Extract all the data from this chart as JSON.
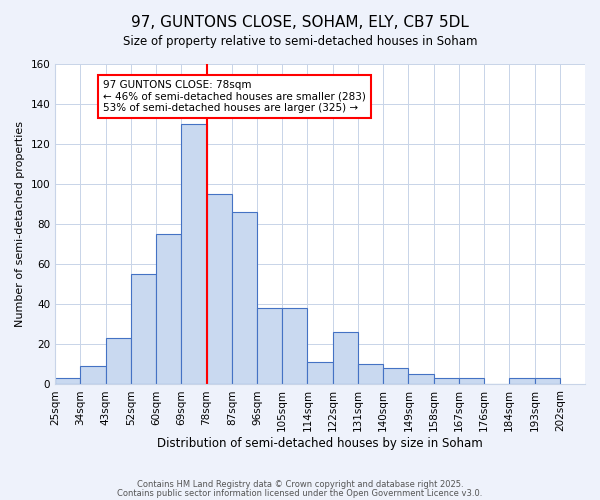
{
  "title_line1": "97, GUNTONS CLOSE, SOHAM, ELY, CB7 5DL",
  "title_line2": "Size of property relative to semi-detached houses in Soham",
  "xlabel": "Distribution of semi-detached houses by size in Soham",
  "ylabel": "Number of semi-detached properties",
  "bin_labels": [
    "25sqm",
    "34sqm",
    "43sqm",
    "52sqm",
    "60sqm",
    "69sqm",
    "78sqm",
    "87sqm",
    "96sqm",
    "105sqm",
    "114sqm",
    "122sqm",
    "131sqm",
    "140sqm",
    "149sqm",
    "158sqm",
    "167sqm",
    "176sqm",
    "184sqm",
    "193sqm",
    "202sqm"
  ],
  "bar_heights": [
    3,
    9,
    23,
    55,
    75,
    130,
    95,
    86,
    38,
    38,
    11,
    26,
    10,
    8,
    5,
    3,
    3,
    0,
    3,
    3
  ],
  "bar_color": "#c9d9f0",
  "bar_edge_color": "#4472c4",
  "vline_color": "red",
  "ylim": [
    0,
    160
  ],
  "yticks": [
    0,
    20,
    40,
    60,
    80,
    100,
    120,
    140,
    160
  ],
  "annotation_title": "97 GUNTONS CLOSE: 78sqm",
  "annotation_line1": "← 46% of semi-detached houses are smaller (283)",
  "annotation_line2": "53% of semi-detached houses are larger (325) →",
  "footer_line1": "Contains HM Land Registry data © Crown copyright and database right 2025.",
  "footer_line2": "Contains public sector information licensed under the Open Government Licence v3.0.",
  "bg_color": "#eef2fb",
  "plot_bg_color": "#ffffff",
  "grid_color": "#c8d4e8"
}
